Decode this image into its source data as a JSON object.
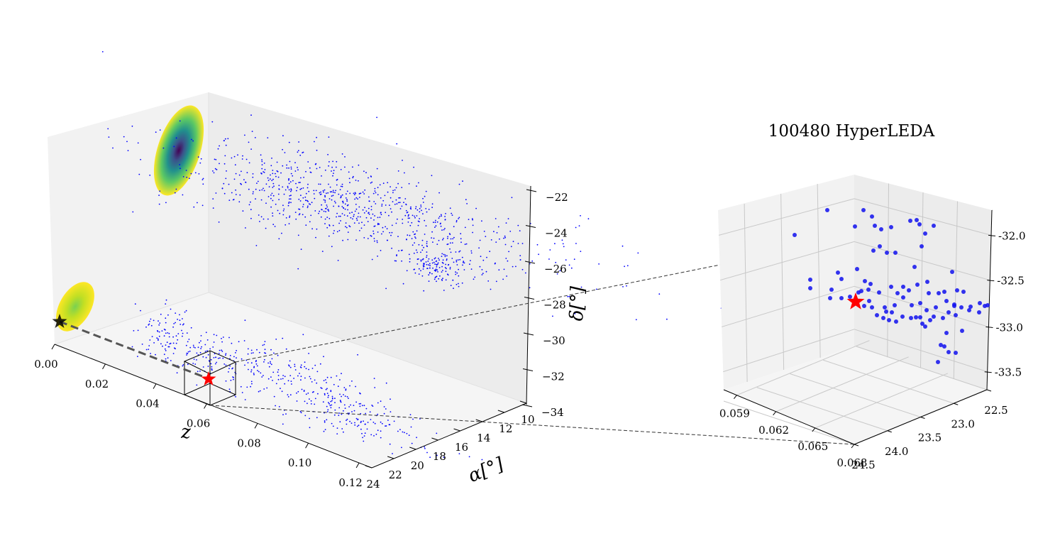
{
  "chart_data": [
    {
      "type": "scatter",
      "projection": "3d",
      "x_axis": {
        "label": "z",
        "ticks": [
          "0.00",
          "0.02",
          "0.04",
          "0.06",
          "0.08",
          "0.10",
          "0.12"
        ],
        "range": [
          0.0,
          0.125
        ]
      },
      "y_axis": {
        "label": "α[°]",
        "ticks": [
          "10",
          "12",
          "14",
          "16",
          "18",
          "20",
          "22",
          "24"
        ],
        "range": [
          10,
          24
        ]
      },
      "z_axis": {
        "label": "δ[°]",
        "ticks": [
          "−22",
          "−24",
          "−26",
          "−28",
          "−30",
          "−32",
          "−34"
        ],
        "range": [
          -34,
          -22
        ]
      },
      "series": [
        {
          "kind": "galaxies (projected onto back wall and floor)",
          "color": "#0000ff",
          "marker": "point"
        },
        {
          "kind": "density contours (projected)",
          "colormap": "viridis"
        },
        {
          "kind": "line of sight",
          "color": "#555555",
          "style": "dashed",
          "from": [
            0.0,
            24.5,
            -28.5
          ],
          "to": [
            0.065,
            23.6,
            -32.8
          ]
        },
        {
          "kind": "observer",
          "marker": "star",
          "color": "#000000",
          "position": [
            0.0,
            24.5,
            -28.5
          ]
        },
        {
          "kind": "target",
          "marker": "star",
          "color": "#ff0000",
          "position": [
            0.065,
            23.6,
            -32.8
          ]
        },
        {
          "kind": "zoom box",
          "x": [
            0.059,
            0.068
          ],
          "y": [
            22.5,
            24.5
          ],
          "z": [
            -33.7,
            -31.8
          ]
        }
      ],
      "grid": false
    },
    {
      "type": "scatter",
      "projection": "3d",
      "title": "100480 HyperLEDA",
      "x_axis": {
        "ticks": [
          "0.059",
          "0.062",
          "0.065",
          "0.068"
        ],
        "range": [
          0.058,
          0.068
        ]
      },
      "y_axis": {
        "ticks": [
          "22.5",
          "23.0",
          "23.5",
          "24.0",
          "24.5"
        ],
        "range": [
          22.5,
          24.5
        ]
      },
      "z_axis": {
        "ticks": [
          "-32.0",
          "-32.5",
          "-33.0",
          "-33.5"
        ],
        "range": [
          -33.7,
          -31.8
        ]
      },
      "series": [
        {
          "kind": "galaxies",
          "color": "#0000ff",
          "marker": "circle",
          "count": 90
        },
        {
          "kind": "target",
          "marker": "star",
          "color": "#ff0000"
        }
      ],
      "grid": true
    }
  ]
}
